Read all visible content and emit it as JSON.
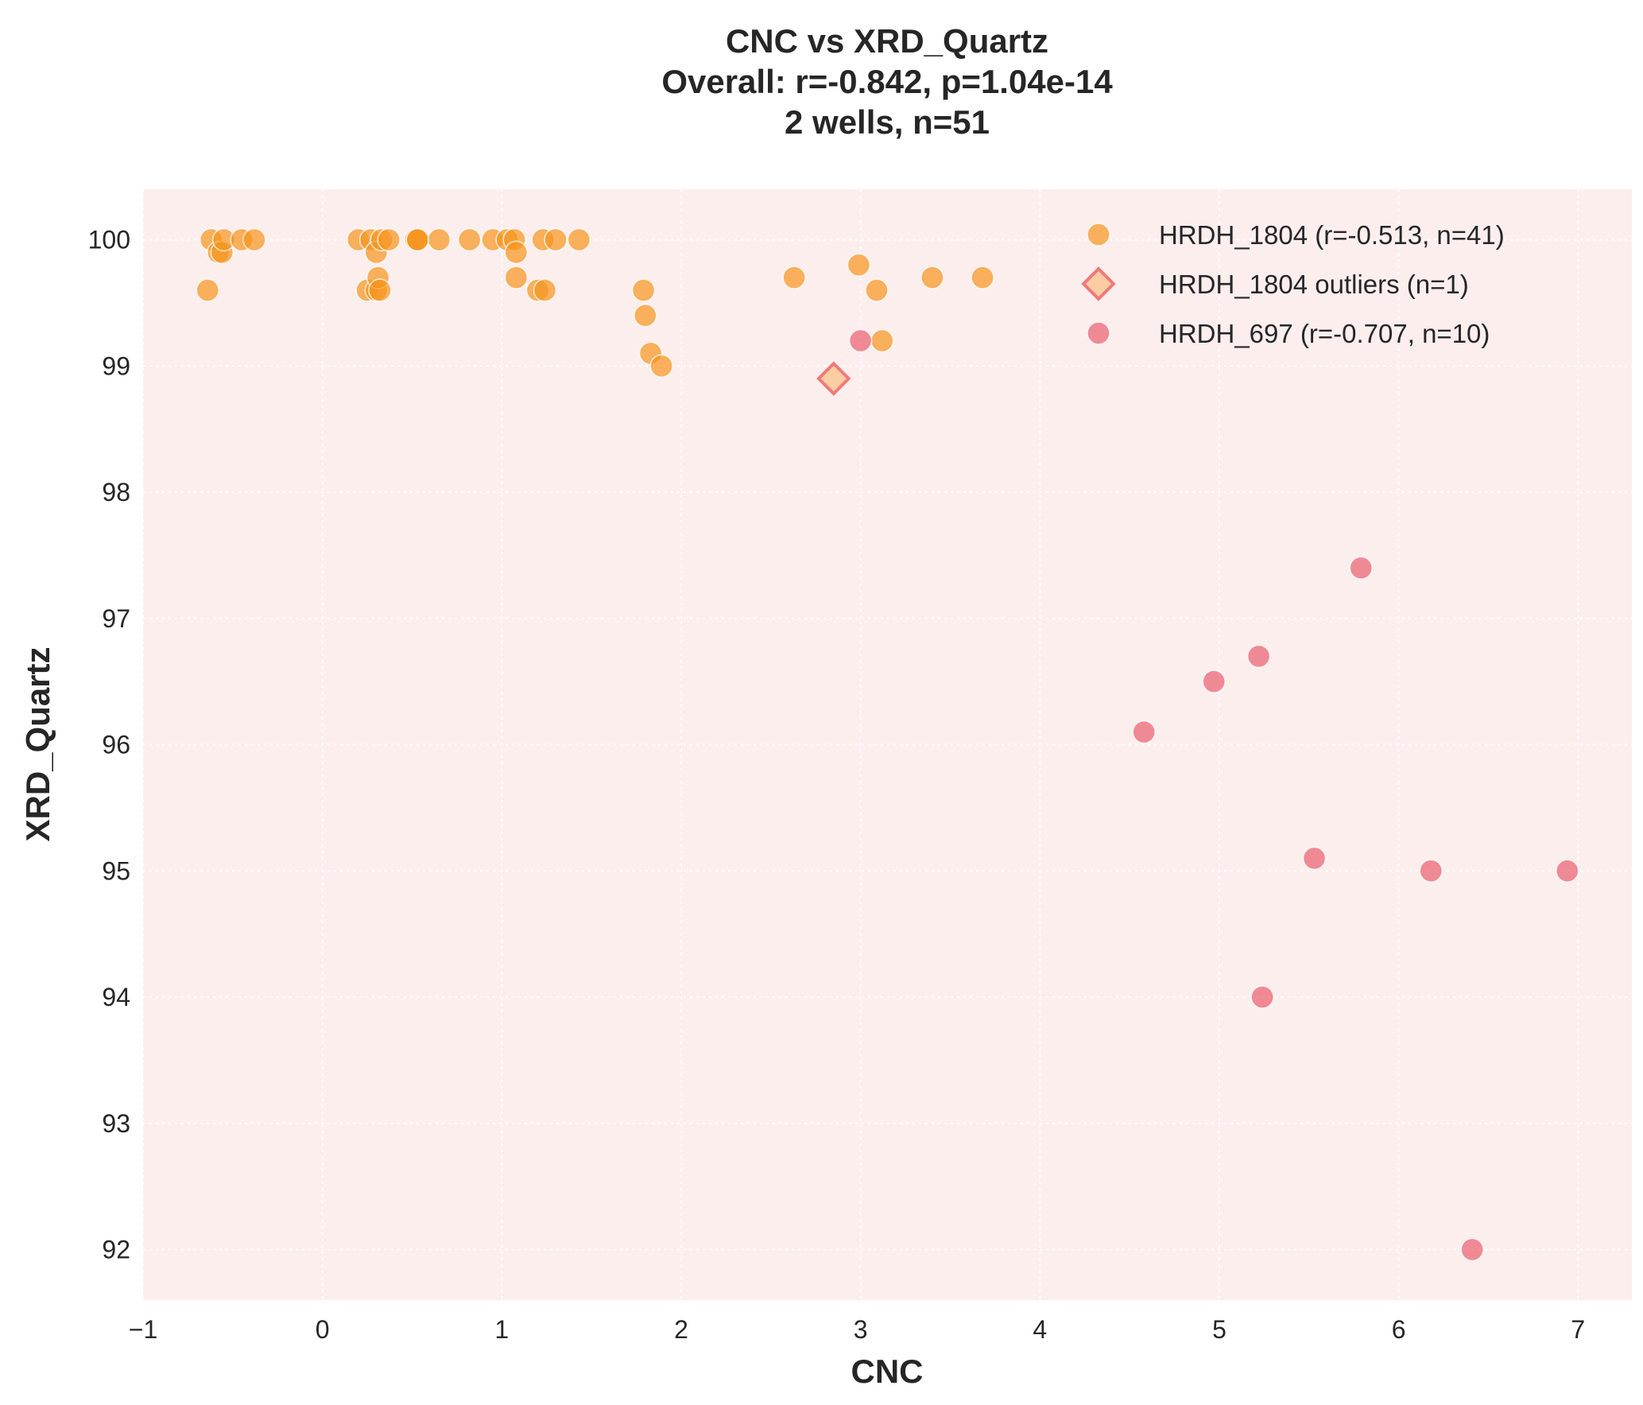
{
  "chart_data": {
    "type": "scatter",
    "title_lines": [
      "CNC vs XRD_Quartz",
      "Overall: r=-0.842, p=1.04e-14",
      "2 wells, n=51"
    ],
    "xlabel": "CNC",
    "ylabel": "XRD_Quartz",
    "xlim": [
      -1,
      7.3
    ],
    "ylim": [
      91.6,
      100.4
    ],
    "xticks": [
      -1,
      0,
      1,
      2,
      3,
      4,
      5,
      6,
      7
    ],
    "xtick_labels": [
      "−1",
      "0",
      "1",
      "2",
      "3",
      "4",
      "5",
      "6",
      "7"
    ],
    "yticks": [
      92,
      93,
      94,
      95,
      96,
      97,
      98,
      99,
      100
    ],
    "ytick_labels": [
      "92",
      "93",
      "94",
      "95",
      "96",
      "97",
      "98",
      "99",
      "100"
    ],
    "plot_background": "#fdeeee",
    "legend_position": "top-right",
    "series": [
      {
        "name": "HRDH_1804 (r=-0.513, n=41)",
        "marker": "circle",
        "color": "#f7941d",
        "points": [
          [
            -0.64,
            99.6
          ],
          [
            -0.62,
            100.0
          ],
          [
            -0.58,
            99.9
          ],
          [
            -0.56,
            99.9
          ],
          [
            -0.55,
            100.0
          ],
          [
            -0.45,
            100.0
          ],
          [
            -0.38,
            100.0
          ],
          [
            0.2,
            100.0
          ],
          [
            0.25,
            99.6
          ],
          [
            0.27,
            100.0
          ],
          [
            0.3,
            99.9
          ],
          [
            0.3,
            99.6
          ],
          [
            0.31,
            99.7
          ],
          [
            0.32,
            99.6
          ],
          [
            0.33,
            100.0
          ],
          [
            0.37,
            100.0
          ],
          [
            0.52,
            100.0
          ],
          [
            0.53,
            100.0
          ],
          [
            0.65,
            100.0
          ],
          [
            0.82,
            100.0
          ],
          [
            0.95,
            100.0
          ],
          [
            1.03,
            100.0
          ],
          [
            1.07,
            100.0
          ],
          [
            1.08,
            99.9
          ],
          [
            1.08,
            99.7
          ],
          [
            1.2,
            99.6
          ],
          [
            1.23,
            100.0
          ],
          [
            1.24,
            99.6
          ],
          [
            1.3,
            100.0
          ],
          [
            1.43,
            100.0
          ],
          [
            1.79,
            99.6
          ],
          [
            1.8,
            99.4
          ],
          [
            1.83,
            99.1
          ],
          [
            1.89,
            99.0
          ],
          [
            2.63,
            99.7
          ],
          [
            2.99,
            99.8
          ],
          [
            3.09,
            99.6
          ],
          [
            3.12,
            99.2
          ],
          [
            3.4,
            99.7
          ],
          [
            3.68,
            99.7
          ],
          [
            0.53,
            100.0
          ]
        ]
      },
      {
        "name": "HRDH_1804 outliers (n=1)",
        "marker": "diamond",
        "color": "#fbc08a",
        "edge_color": "#f07a7a",
        "points": [
          [
            2.85,
            98.9
          ]
        ]
      },
      {
        "name": "HRDH_697 (r=-0.707, n=10)",
        "marker": "circle",
        "color": "#e8606d",
        "points": [
          [
            3.0,
            99.2
          ],
          [
            4.58,
            96.1
          ],
          [
            4.97,
            96.5
          ],
          [
            5.22,
            96.7
          ],
          [
            5.24,
            94.0
          ],
          [
            5.53,
            95.1
          ],
          [
            5.79,
            97.4
          ],
          [
            6.18,
            95.0
          ],
          [
            6.41,
            92.0
          ],
          [
            6.94,
            95.0
          ]
        ]
      }
    ]
  }
}
